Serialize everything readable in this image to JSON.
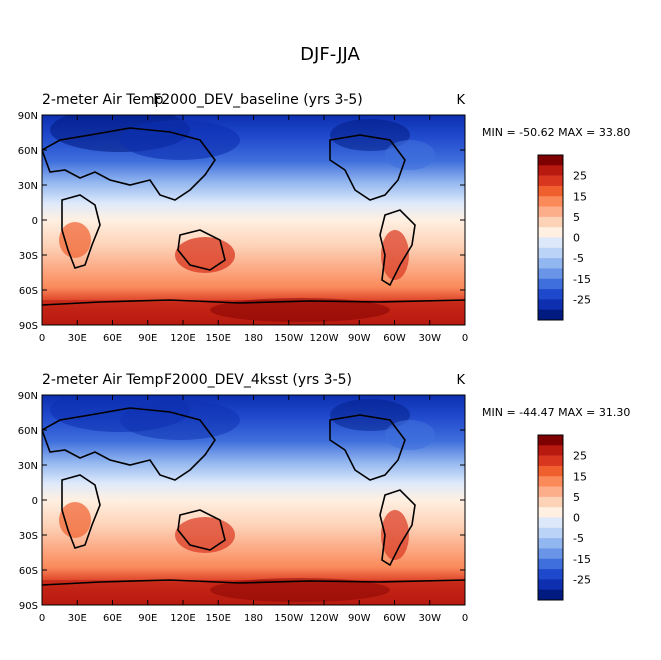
{
  "page_title": "DJF-JJA",
  "panels": [
    {
      "left_title": "2-meter Air Temp",
      "center_title": "F2000_DEV_baseline (yrs 3-5)",
      "units": "K",
      "stats": "MIN = -50.62 MAX =  33.80"
    },
    {
      "left_title": "2-meter Air Temp",
      "center_title": "F2000_DEV_4ksst (yrs 3-5)",
      "units": "K",
      "stats": "MIN = -44.47 MAX =  31.30"
    }
  ],
  "axes": {
    "lat_labels": [
      "90N",
      "60N",
      "30N",
      "0",
      "30S",
      "60S",
      "90S"
    ],
    "lon_labels": [
      "0",
      "30E",
      "60E",
      "90E",
      "120E",
      "150E",
      "180",
      "150W",
      "120W",
      "90W",
      "60W",
      "30W",
      "0"
    ]
  },
  "colorbar": {
    "labels": [
      "25",
      "15",
      "5",
      "0",
      "-5",
      "-15",
      "-25"
    ],
    "colors": [
      "#7f0000",
      "#b81a10",
      "#d8361f",
      "#f0602e",
      "#fa8a5a",
      "#fcae8a",
      "#fdd3b8",
      "#fff0e2",
      "#dde9fb",
      "#bbd3f6",
      "#92b6ef",
      "#6a95e6",
      "#3f6fdc",
      "#1f49cc",
      "#0d2fb0",
      "#001a80"
    ]
  },
  "chart_data": {
    "type": "heatmap",
    "title": "DJF-JJA",
    "variable": "2-meter Air Temp",
    "units": "K",
    "x_axis": "longitude",
    "y_axis": "latitude",
    "xlim": [
      0,
      360
    ],
    "ylim": [
      -90,
      90
    ],
    "panels": [
      {
        "name": "F2000_DEV_baseline (yrs 3-5)",
        "min": -50.62,
        "max": 33.8
      },
      {
        "name": "F2000_DEV_4ksst (yrs 3-5)",
        "min": -44.47,
        "max": 31.3
      }
    ],
    "contour_levels": [
      -35,
      -30,
      -25,
      -20,
      -15,
      -10,
      -5,
      -2,
      0,
      2,
      5,
      10,
      15,
      20,
      25,
      30
    ]
  }
}
